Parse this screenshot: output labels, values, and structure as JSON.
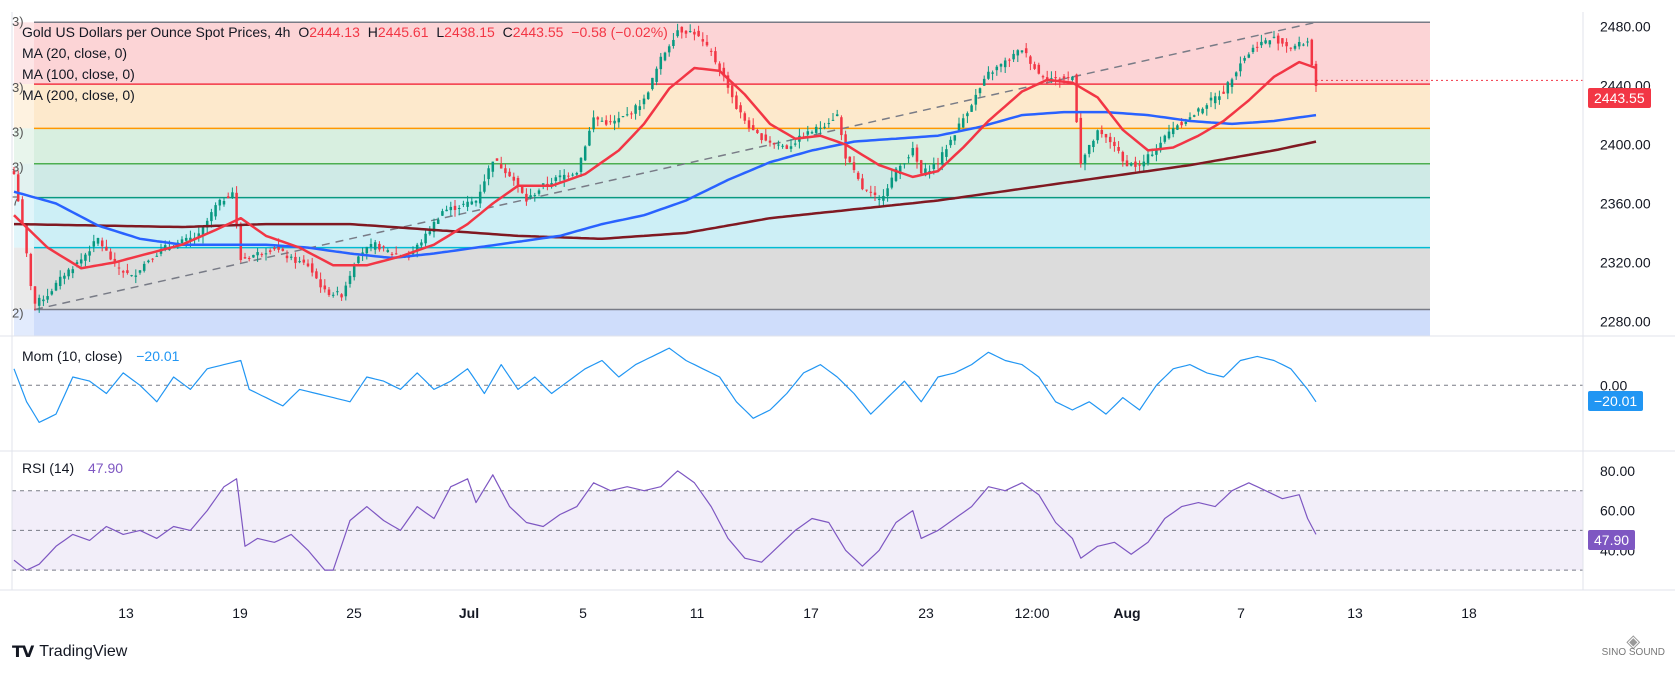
{
  "header": {
    "symbol_title": "Gold US Dollars per Ounce Spot Prices, 4h",
    "o_label": "O",
    "o_value": "2444.13",
    "h_label": "H",
    "h_value": "2445.61",
    "l_label": "L",
    "l_value": "2438.15",
    "c_label": "C",
    "c_value": "2443.55",
    "change": "−0.58 (−0.02%)"
  },
  "indicators": {
    "ma20": "MA (20, close, 0)",
    "ma100": "MA (100, close, 0)",
    "ma200": "MA (200, close, 0)",
    "mom_label": "Mom (10, close)",
    "mom_value": "−20.01",
    "rsi_label": "RSI (14)",
    "rsi_value": "47.90"
  },
  "fib_edge_labels": [
    "3)",
    "3)",
    "3)",
    "3)",
    "7",
    "2)"
  ],
  "price_axis": {
    "ticks": [
      "2480.00",
      "2440.00",
      "2400.00",
      "2360.00",
      "2320.00",
      "2280.00"
    ],
    "current_price": "2443.55"
  },
  "mom_axis": {
    "ticks": [
      "0.00"
    ],
    "current": "−20.01"
  },
  "rsi_axis": {
    "ticks": [
      "80.00",
      "60.00",
      "40.00"
    ],
    "current": "47.90"
  },
  "time_axis": [
    "13",
    "19",
    "25",
    "Jul",
    "5",
    "11",
    "17",
    "23",
    "12:00",
    "Aug",
    "7",
    "13",
    "18"
  ],
  "footer": {
    "brand": "TradingView",
    "watermark": "SINO SOUND"
  },
  "colors": {
    "ma20": "#f23645",
    "ma100": "#2962ff",
    "ma200": "#801922",
    "mom": "#2196f3",
    "rsi": "#7e57c2",
    "price_tag": "#f23645"
  },
  "chart_data": [
    {
      "type": "candlestick",
      "title": "Gold US Dollars per Ounce Spot Prices, 4h",
      "ylim": [
        2270,
        2490
      ],
      "x_ticks": [
        "13",
        "19",
        "25",
        "Jul",
        "5",
        "11",
        "17",
        "23",
        "12:00",
        "Aug",
        "7",
        "13",
        "18"
      ],
      "fib_levels": [
        2483,
        2441,
        2411,
        2387,
        2364,
        2330,
        2288
      ],
      "fib_colors": [
        "#fcd4d6",
        "#fde9cc",
        "#d8efe0",
        "#cfeae6",
        "#cdeff6",
        "#dcdcdc",
        "#cfddfb"
      ],
      "fib_line_colors": [
        "#787b86",
        "#f23645",
        "#ff9800",
        "#4caf50",
        "#089981",
        "#00bcd4",
        "#787b86"
      ],
      "close_anchors": [
        [
          0,
          2380
        ],
        [
          2,
          2345
        ],
        [
          4,
          2305
        ],
        [
          5,
          2292
        ],
        [
          8,
          2298
        ],
        [
          12,
          2312
        ],
        [
          16,
          2322
        ],
        [
          20,
          2336
        ],
        [
          24,
          2318
        ],
        [
          28,
          2310
        ],
        [
          32,
          2322
        ],
        [
          36,
          2330
        ],
        [
          40,
          2334
        ],
        [
          44,
          2338
        ],
        [
          48,
          2358
        ],
        [
          52,
          2368
        ],
        [
          54,
          2322
        ],
        [
          58,
          2326
        ],
        [
          62,
          2330
        ],
        [
          66,
          2322
        ],
        [
          70,
          2318
        ],
        [
          74,
          2300
        ],
        [
          78,
          2298
        ],
        [
          82,
          2326
        ],
        [
          86,
          2332
        ],
        [
          90,
          2326
        ],
        [
          94,
          2324
        ],
        [
          98,
          2338
        ],
        [
          102,
          2355
        ],
        [
          106,
          2358
        ],
        [
          110,
          2362
        ],
        [
          114,
          2390
        ],
        [
          118,
          2380
        ],
        [
          122,
          2362
        ],
        [
          126,
          2372
        ],
        [
          130,
          2378
        ],
        [
          134,
          2382
        ],
        [
          138,
          2418
        ],
        [
          142,
          2414
        ],
        [
          146,
          2420
        ],
        [
          150,
          2430
        ],
        [
          154,
          2458
        ],
        [
          158,
          2478
        ],
        [
          162,
          2476
        ],
        [
          166,
          2462
        ],
        [
          170,
          2440
        ],
        [
          172,
          2425
        ],
        [
          176,
          2408
        ],
        [
          180,
          2402
        ],
        [
          184,
          2398
        ],
        [
          188,
          2406
        ],
        [
          192,
          2412
        ],
        [
          196,
          2420
        ],
        [
          198,
          2392
        ],
        [
          202,
          2370
        ],
        [
          206,
          2362
        ],
        [
          210,
          2382
        ],
        [
          214,
          2396
        ],
        [
          216,
          2380
        ],
        [
          220,
          2388
        ],
        [
          224,
          2408
        ],
        [
          228,
          2428
        ],
        [
          232,
          2448
        ],
        [
          236,
          2456
        ],
        [
          240,
          2465
        ],
        [
          244,
          2448
        ],
        [
          248,
          2444
        ],
        [
          252,
          2446
        ],
        [
          254,
          2388
        ],
        [
          258,
          2408
        ],
        [
          262,
          2400
        ],
        [
          264,
          2388
        ],
        [
          268,
          2385
        ],
        [
          272,
          2398
        ],
        [
          276,
          2412
        ],
        [
          280,
          2418
        ],
        [
          284,
          2428
        ],
        [
          288,
          2436
        ],
        [
          292,
          2456
        ],
        [
          296,
          2468
        ],
        [
          300,
          2472
        ],
        [
          304,
          2466
        ],
        [
          308,
          2470
        ],
        [
          310,
          2440
        ]
      ],
      "ma20_anchors": [
        [
          0,
          2352
        ],
        [
          8,
          2330
        ],
        [
          16,
          2316
        ],
        [
          24,
          2320
        ],
        [
          32,
          2326
        ],
        [
          40,
          2332
        ],
        [
          48,
          2342
        ],
        [
          54,
          2350
        ],
        [
          60,
          2338
        ],
        [
          68,
          2330
        ],
        [
          76,
          2318
        ],
        [
          84,
          2318
        ],
        [
          92,
          2324
        ],
        [
          100,
          2332
        ],
        [
          108,
          2346
        ],
        [
          114,
          2360
        ],
        [
          120,
          2372
        ],
        [
          128,
          2372
        ],
        [
          136,
          2380
        ],
        [
          144,
          2396
        ],
        [
          150,
          2414
        ],
        [
          156,
          2438
        ],
        [
          162,
          2452
        ],
        [
          168,
          2450
        ],
        [
          174,
          2434
        ],
        [
          180,
          2414
        ],
        [
          186,
          2404
        ],
        [
          192,
          2406
        ],
        [
          198,
          2400
        ],
        [
          206,
          2386
        ],
        [
          214,
          2378
        ],
        [
          220,
          2382
        ],
        [
          226,
          2398
        ],
        [
          232,
          2416
        ],
        [
          240,
          2436
        ],
        [
          246,
          2444
        ],
        [
          252,
          2442
        ],
        [
          258,
          2432
        ],
        [
          264,
          2410
        ],
        [
          270,
          2396
        ],
        [
          276,
          2398
        ],
        [
          282,
          2406
        ],
        [
          288,
          2416
        ],
        [
          294,
          2430
        ],
        [
          300,
          2446
        ],
        [
          306,
          2456
        ],
        [
          310,
          2452
        ]
      ],
      "ma100_anchors": [
        [
          0,
          2368
        ],
        [
          10,
          2360
        ],
        [
          20,
          2345
        ],
        [
          30,
          2336
        ],
        [
          40,
          2332
        ],
        [
          50,
          2332
        ],
        [
          60,
          2332
        ],
        [
          70,
          2330
        ],
        [
          80,
          2326
        ],
        [
          90,
          2323
        ],
        [
          100,
          2326
        ],
        [
          110,
          2330
        ],
        [
          120,
          2334
        ],
        [
          130,
          2338
        ],
        [
          140,
          2346
        ],
        [
          150,
          2352
        ],
        [
          160,
          2362
        ],
        [
          170,
          2376
        ],
        [
          180,
          2388
        ],
        [
          190,
          2396
        ],
        [
          200,
          2402
        ],
        [
          210,
          2404
        ],
        [
          220,
          2406
        ],
        [
          230,
          2412
        ],
        [
          240,
          2420
        ],
        [
          250,
          2422
        ],
        [
          260,
          2422
        ],
        [
          270,
          2420
        ],
        [
          280,
          2416
        ],
        [
          290,
          2414
        ],
        [
          300,
          2416
        ],
        [
          310,
          2420
        ]
      ],
      "ma200_anchors": [
        [
          0,
          2346
        ],
        [
          20,
          2345
        ],
        [
          40,
          2344
        ],
        [
          60,
          2346
        ],
        [
          80,
          2346
        ],
        [
          100,
          2342
        ],
        [
          120,
          2338
        ],
        [
          140,
          2336
        ],
        [
          160,
          2340
        ],
        [
          180,
          2350
        ],
        [
          200,
          2356
        ],
        [
          220,
          2362
        ],
        [
          240,
          2370
        ],
        [
          260,
          2378
        ],
        [
          280,
          2386
        ],
        [
          300,
          2396
        ],
        [
          310,
          2402
        ]
      ],
      "trendline": [
        [
          5,
          2288
        ],
        [
          310,
          2483
        ]
      ],
      "current_price": 2443.55
    },
    {
      "type": "line",
      "name": "Mom (10, close)",
      "ylim": [
        -70,
        50
      ],
      "zero_line": 0,
      "anchors": [
        [
          0,
          20
        ],
        [
          3,
          -20
        ],
        [
          6,
          -45
        ],
        [
          10,
          -35
        ],
        [
          14,
          10
        ],
        [
          18,
          5
        ],
        [
          22,
          -10
        ],
        [
          26,
          15
        ],
        [
          30,
          0
        ],
        [
          34,
          -20
        ],
        [
          38,
          10
        ],
        [
          42,
          -5
        ],
        [
          46,
          20
        ],
        [
          50,
          25
        ],
        [
          54,
          30
        ],
        [
          56,
          -5
        ],
        [
          60,
          -15
        ],
        [
          64,
          -25
        ],
        [
          68,
          -5
        ],
        [
          72,
          -10
        ],
        [
          76,
          -15
        ],
        [
          80,
          -20
        ],
        [
          84,
          10
        ],
        [
          88,
          5
        ],
        [
          92,
          -5
        ],
        [
          96,
          15
        ],
        [
          100,
          -5
        ],
        [
          104,
          5
        ],
        [
          108,
          20
        ],
        [
          112,
          -10
        ],
        [
          116,
          25
        ],
        [
          120,
          -5
        ],
        [
          124,
          10
        ],
        [
          128,
          -10
        ],
        [
          132,
          5
        ],
        [
          136,
          20
        ],
        [
          140,
          30
        ],
        [
          144,
          10
        ],
        [
          148,
          25
        ],
        [
          152,
          35
        ],
        [
          156,
          45
        ],
        [
          160,
          30
        ],
        [
          164,
          20
        ],
        [
          168,
          10
        ],
        [
          172,
          -20
        ],
        [
          176,
          -40
        ],
        [
          180,
          -30
        ],
        [
          184,
          -10
        ],
        [
          188,
          15
        ],
        [
          192,
          25
        ],
        [
          196,
          10
        ],
        [
          200,
          -10
        ],
        [
          204,
          -35
        ],
        [
          208,
          -15
        ],
        [
          212,
          5
        ],
        [
          216,
          -20
        ],
        [
          220,
          10
        ],
        [
          224,
          15
        ],
        [
          228,
          25
        ],
        [
          232,
          40
        ],
        [
          236,
          30
        ],
        [
          240,
          25
        ],
        [
          244,
          10
        ],
        [
          248,
          -20
        ],
        [
          252,
          -30
        ],
        [
          256,
          -20
        ],
        [
          260,
          -35
        ],
        [
          264,
          -15
        ],
        [
          268,
          -30
        ],
        [
          272,
          0
        ],
        [
          276,
          20
        ],
        [
          280,
          25
        ],
        [
          284,
          15
        ],
        [
          288,
          10
        ],
        [
          292,
          30
        ],
        [
          296,
          35
        ],
        [
          300,
          30
        ],
        [
          304,
          20
        ],
        [
          308,
          -5
        ],
        [
          310,
          -20
        ]
      ],
      "current": -20.01
    },
    {
      "type": "line",
      "name": "RSI (14)",
      "ylim": [
        20,
        90
      ],
      "bands": [
        30,
        50,
        70
      ],
      "anchors": [
        [
          0,
          35
        ],
        [
          3,
          30
        ],
        [
          6,
          33
        ],
        [
          10,
          42
        ],
        [
          14,
          48
        ],
        [
          18,
          45
        ],
        [
          22,
          52
        ],
        [
          26,
          48
        ],
        [
          30,
          50
        ],
        [
          34,
          46
        ],
        [
          38,
          52
        ],
        [
          42,
          50
        ],
        [
          46,
          60
        ],
        [
          50,
          72
        ],
        [
          53,
          76
        ],
        [
          55,
          42
        ],
        [
          58,
          46
        ],
        [
          62,
          44
        ],
        [
          66,
          48
        ],
        [
          70,
          40
        ],
        [
          74,
          30
        ],
        [
          76,
          30
        ],
        [
          80,
          55
        ],
        [
          84,
          62
        ],
        [
          88,
          55
        ],
        [
          92,
          50
        ],
        [
          96,
          62
        ],
        [
          100,
          56
        ],
        [
          104,
          72
        ],
        [
          108,
          76
        ],
        [
          110,
          64
        ],
        [
          114,
          78
        ],
        [
          118,
          62
        ],
        [
          122,
          54
        ],
        [
          126,
          52
        ],
        [
          130,
          58
        ],
        [
          134,
          62
        ],
        [
          138,
          74
        ],
        [
          142,
          70
        ],
        [
          146,
          72
        ],
        [
          150,
          70
        ],
        [
          154,
          72
        ],
        [
          158,
          80
        ],
        [
          162,
          74
        ],
        [
          166,
          62
        ],
        [
          170,
          46
        ],
        [
          174,
          36
        ],
        [
          178,
          34
        ],
        [
          182,
          42
        ],
        [
          186,
          50
        ],
        [
          190,
          56
        ],
        [
          194,
          54
        ],
        [
          198,
          40
        ],
        [
          202,
          32
        ],
        [
          206,
          40
        ],
        [
          210,
          54
        ],
        [
          214,
          60
        ],
        [
          216,
          46
        ],
        [
          220,
          50
        ],
        [
          224,
          56
        ],
        [
          228,
          62
        ],
        [
          232,
          72
        ],
        [
          236,
          70
        ],
        [
          240,
          74
        ],
        [
          244,
          68
        ],
        [
          248,
          54
        ],
        [
          252,
          46
        ],
        [
          254,
          36
        ],
        [
          258,
          42
        ],
        [
          262,
          44
        ],
        [
          266,
          38
        ],
        [
          270,
          44
        ],
        [
          274,
          56
        ],
        [
          278,
          62
        ],
        [
          282,
          64
        ],
        [
          286,
          62
        ],
        [
          290,
          70
        ],
        [
          294,
          74
        ],
        [
          298,
          70
        ],
        [
          302,
          66
        ],
        [
          306,
          68
        ],
        [
          308,
          56
        ],
        [
          310,
          48
        ]
      ],
      "current": 47.9
    }
  ]
}
